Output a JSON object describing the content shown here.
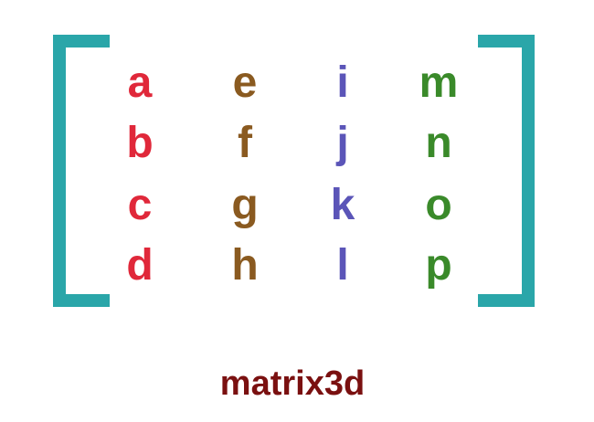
{
  "matrix": {
    "columns": [
      {
        "color": "#e0283a",
        "cells": [
          "a",
          "b",
          "c",
          "d"
        ]
      },
      {
        "color": "#8a5a20",
        "cells": [
          "e",
          "f",
          "g",
          "h"
        ]
      },
      {
        "color": "#5b55b8",
        "cells": [
          "i",
          "j",
          "k",
          "l"
        ]
      },
      {
        "color": "#3a8a2a",
        "cells": [
          "m",
          "n",
          "o",
          "p"
        ]
      }
    ]
  },
  "bracket_color": "#2aa6a9",
  "caption": {
    "text": "matrix3d",
    "color": "#7a1010"
  }
}
